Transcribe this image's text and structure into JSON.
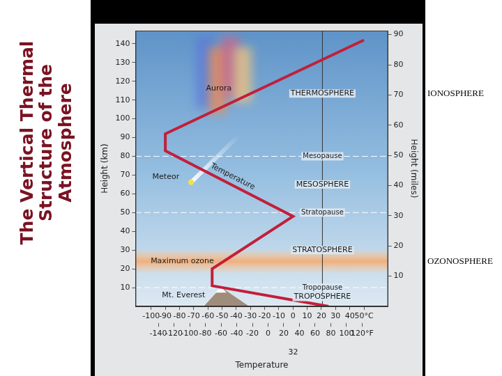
{
  "chart_data": {
    "type": "line",
    "title": "The Vertical Thermal Structure of the Atmosphere",
    "x_label": "Temperature",
    "y_label": "Height (km)",
    "y2_label": "Height (miles)",
    "series": [
      {
        "name": "Temperature",
        "color": "#c21f3a",
        "x": [
          25,
          -57,
          -57,
          0,
          -90,
          -90,
          50
        ],
        "values": [
          0,
          11,
          20,
          48,
          83,
          92,
          142
        ]
      }
    ],
    "xlim": [
      -111,
      67
    ],
    "xticks": [
      -100,
      -90,
      -80,
      -70,
      -60,
      -50,
      -40,
      -30,
      -20,
      -10,
      0,
      10,
      20,
      30,
      40,
      {
        "value": 50,
        "label": "50°C"
      }
    ],
    "x2lim": [
      -169,
      153
    ],
    "x2ticks": [
      -140,
      -120,
      -100,
      -80,
      -60,
      -40,
      -20,
      0,
      20,
      40,
      60,
      80,
      100,
      {
        "value": 120,
        "label": "120°F"
      },
      32
    ],
    "ylim": [
      0,
      147
    ],
    "yticks": [
      10,
      20,
      30,
      40,
      50,
      60,
      70,
      80,
      90,
      100,
      110,
      120,
      130,
      140
    ],
    "y2lim": [
      0,
      91.3
    ],
    "y2ticks": [
      10,
      20,
      30,
      40,
      50,
      60,
      70,
      80,
      90
    ],
    "grid": false,
    "layers": [
      {
        "name": "TROPOSPHERE"
      },
      {
        "name": "STRATOSPHERE"
      },
      {
        "name": "MESOSPHERE"
      },
      {
        "name": "THERMOSPHERE",
        "sphere": "IONOSPHERE"
      }
    ],
    "boundaries": [
      {
        "label": "Tropopause",
        "height": 10
      },
      {
        "label": "Stratopause",
        "height": 50
      },
      {
        "label": "Mesopause",
        "height": 80
      }
    ],
    "ozone": {
      "label": "Maximum ozone",
      "bottom": 18,
      "top": 30,
      "sphere": "OZONOSPHERE"
    },
    "annotations": {
      "aurora": "Aurora",
      "meteor": "Meteor",
      "mountain": "Mt. Everest"
    }
  }
}
